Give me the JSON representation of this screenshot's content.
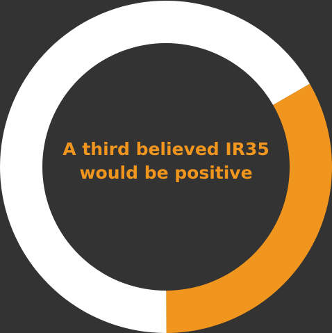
{
  "chart_data": {
    "type": "pie",
    "variant": "donut",
    "slices": [
      {
        "label": "",
        "value": 0.333,
        "color": "#f0961e"
      },
      {
        "label": "",
        "value": 0.667,
        "color": "#ffffff"
      }
    ],
    "title": "A third believed IR35 would be positive",
    "legend": "none"
  },
  "colors": {
    "background": "#333333",
    "highlight": "#f0961e",
    "remainder": "#ffffff"
  }
}
